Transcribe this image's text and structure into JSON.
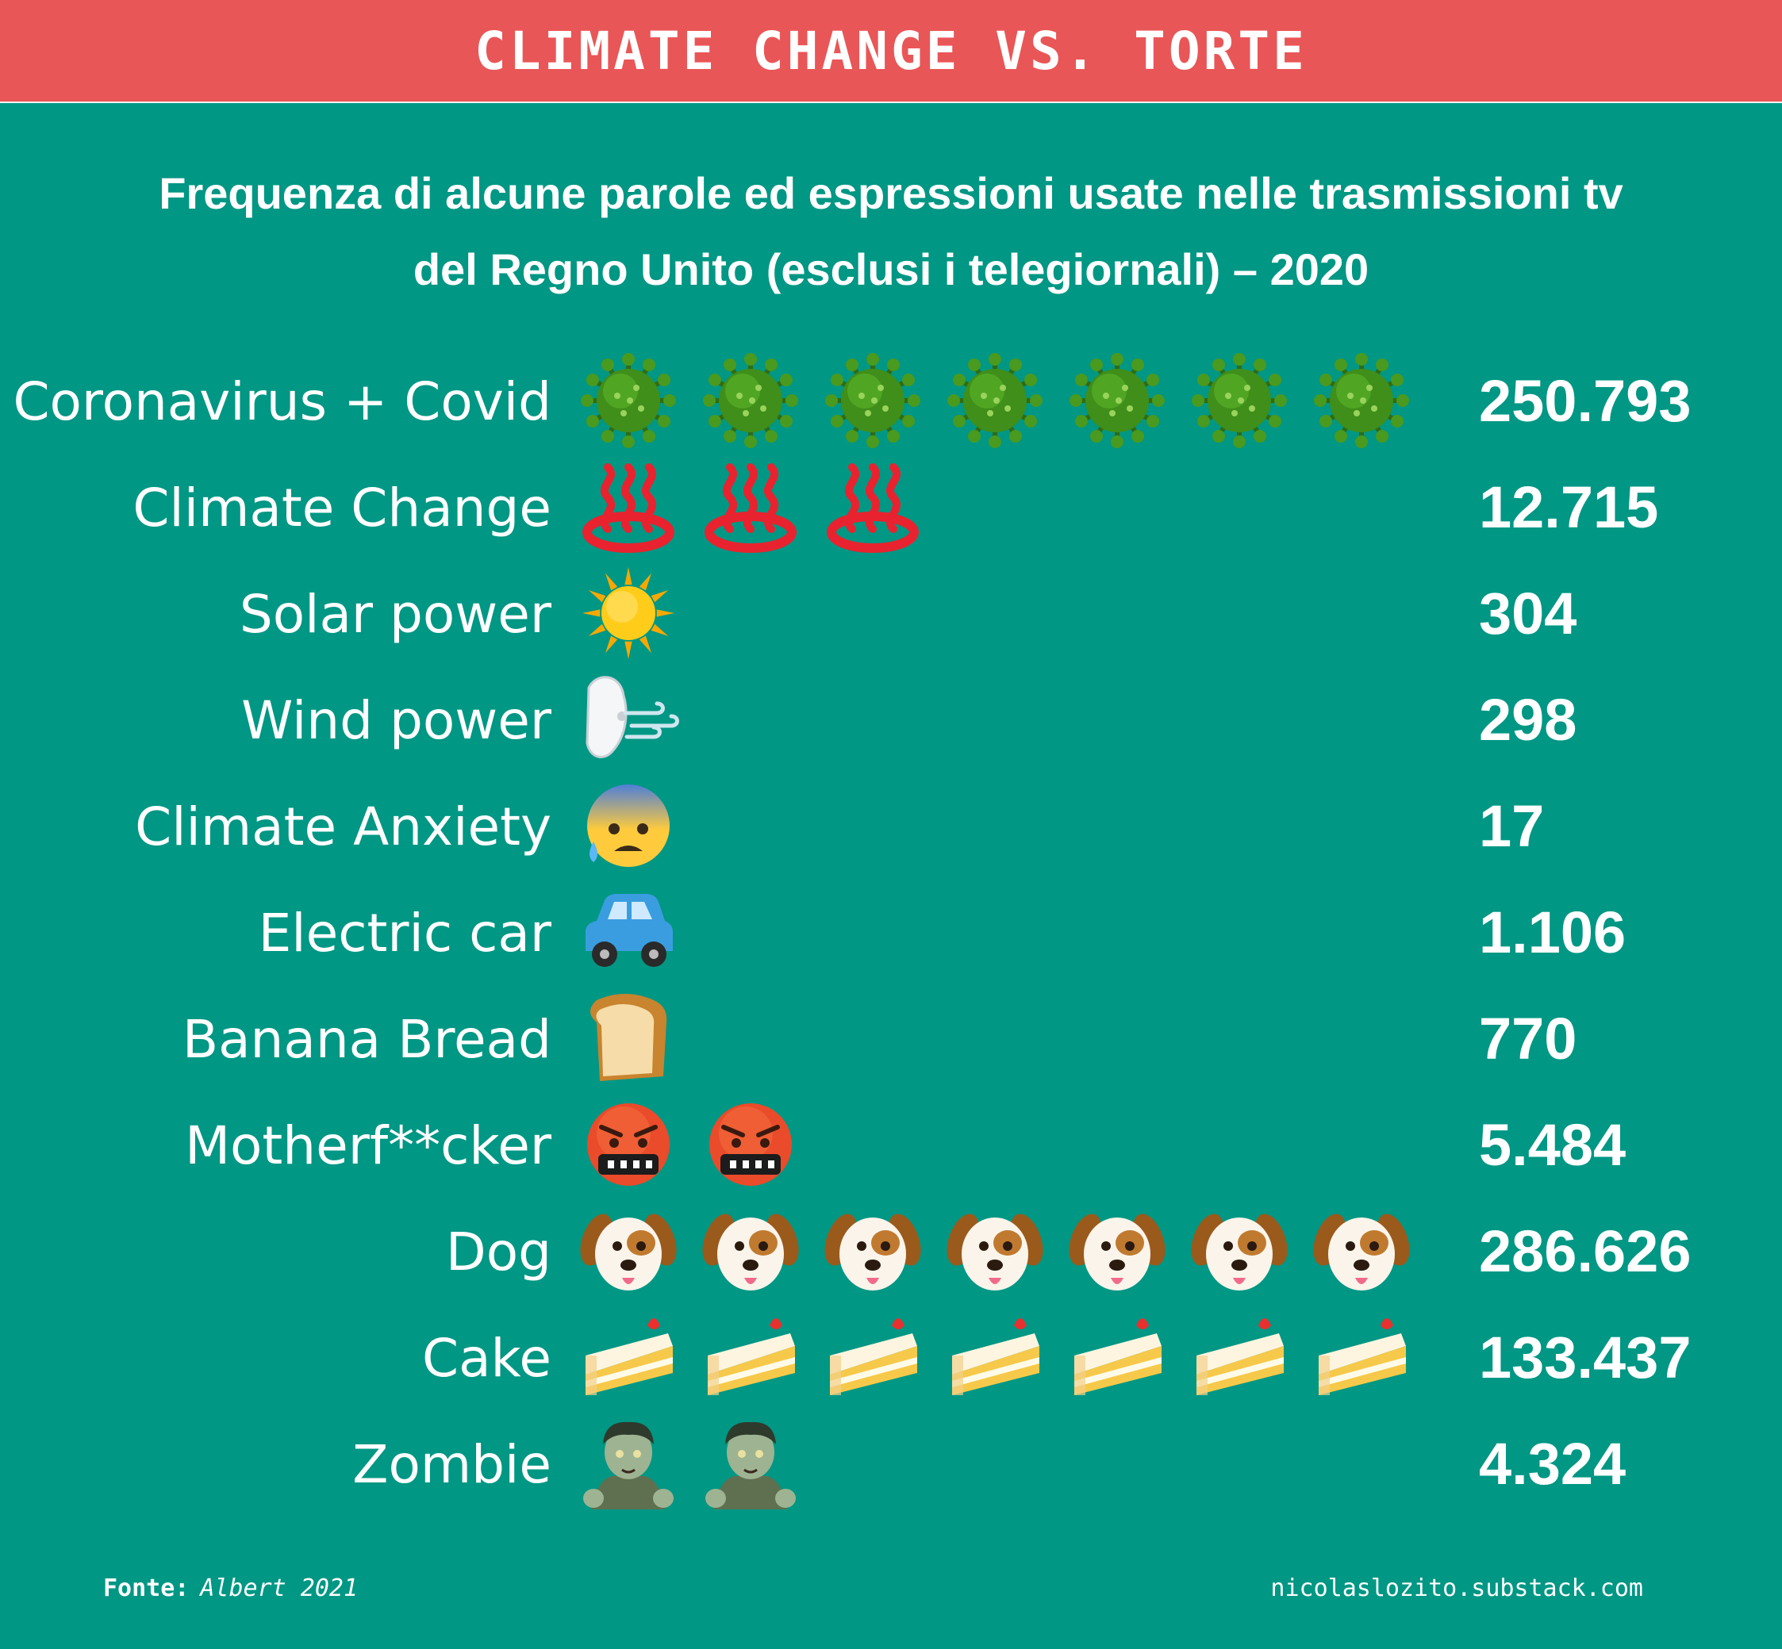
{
  "header": {
    "title": "CLIMATE CHANGE VS. TORTE"
  },
  "subtitle": {
    "line1": "Frequenza di alcune parole ed espressioni usate nelle trasmissioni tv",
    "line2": "del Regno Unito (esclusi i telegiornali) – 2020"
  },
  "chart_data": {
    "type": "pictogram",
    "title": "Frequenza di alcune parole ed espressioni usate nelle trasmissioni tv del Regno Unito (esclusi i telegiornali) – 2020",
    "categories": [
      "Coronavirus + Covid",
      "Climate Change",
      "Solar power",
      "Wind power",
      "Climate Anxiety",
      "Electric car",
      "Banana Bread",
      "Motherf**cker",
      "Dog",
      "Cake",
      "Zombie"
    ],
    "values": [
      250793,
      12715,
      304,
      298,
      17,
      1106,
      770,
      5484,
      286626,
      133437,
      4324
    ],
    "rows": [
      {
        "label": "Coronavirus + Covid",
        "value": 250793,
        "display": "250.793",
        "icon": "virus-icon",
        "icon_count": 7
      },
      {
        "label": "Climate Change",
        "value": 12715,
        "display": "12.715",
        "icon": "hot-springs-icon",
        "icon_count": 3
      },
      {
        "label": "Solar power",
        "value": 304,
        "display": "304",
        "icon": "sun-icon",
        "icon_count": 1
      },
      {
        "label": "Wind power",
        "value": 298,
        "display": "298",
        "icon": "wind-face-icon",
        "icon_count": 1
      },
      {
        "label": "Climate Anxiety",
        "value": 17,
        "display": "17",
        "icon": "anxious-face-icon",
        "icon_count": 1
      },
      {
        "label": "Electric car",
        "value": 1106,
        "display": "1.106",
        "icon": "car-icon",
        "icon_count": 1
      },
      {
        "label": "Banana Bread",
        "value": 770,
        "display": "770",
        "icon": "bread-icon",
        "icon_count": 1
      },
      {
        "label": "Motherf**cker",
        "value": 5484,
        "display": "5.484",
        "icon": "cursing-face-icon",
        "icon_count": 2
      },
      {
        "label": "Dog",
        "value": 286626,
        "display": "286.626",
        "icon": "dog-face-icon",
        "icon_count": 7
      },
      {
        "label": "Cake",
        "value": 133437,
        "display": "133.437",
        "icon": "cake-slice-icon",
        "icon_count": 7
      },
      {
        "label": "Zombie",
        "value": 4324,
        "display": "4.324",
        "icon": "zombie-icon",
        "icon_count": 2
      }
    ]
  },
  "footer": {
    "source_label": "Fonte:",
    "source_value": "Albert 2021",
    "credit": "nicolaslozito.substack.com"
  },
  "colors": {
    "background": "#009784",
    "header": "#e95657",
    "text": "#ffffff"
  }
}
